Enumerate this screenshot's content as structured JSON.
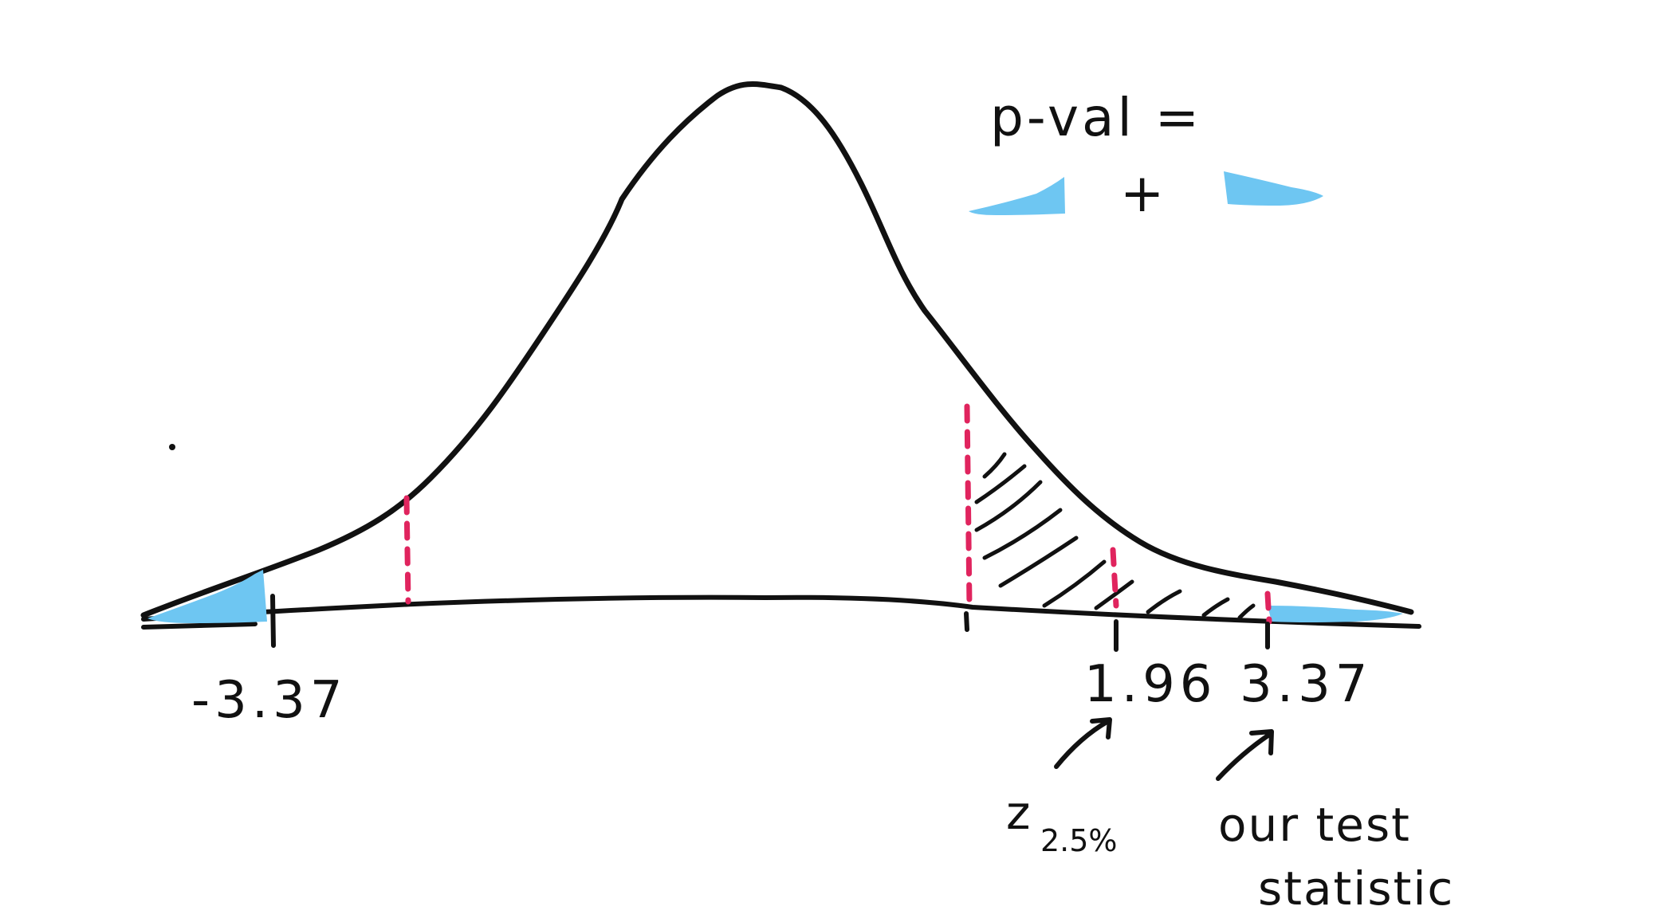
{
  "formula": {
    "lhs": "p-val =",
    "plus": "+"
  },
  "axis": {
    "tick_labels": {
      "left_stat": "-3.37",
      "critical": "1.96",
      "right_stat": "3.37"
    }
  },
  "annotations": {
    "critical_symbol": "z",
    "critical_subscript": "2.5%",
    "test_stat_line1": "our test",
    "test_stat_line2": "statistic"
  },
  "colors": {
    "ink": "#111111",
    "critical_marker": "#e0245e",
    "p_value_fill": "#6ec6f2"
  }
}
